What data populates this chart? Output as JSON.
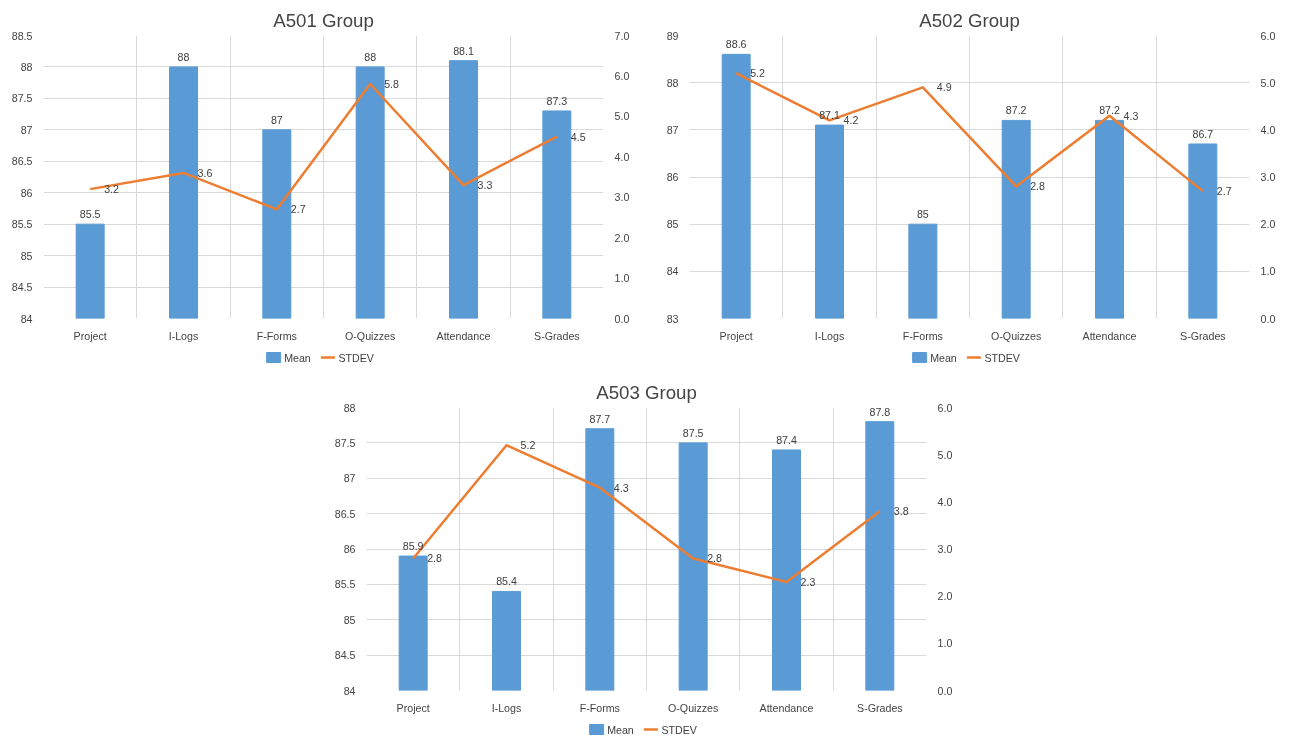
{
  "chart_data": [
    {
      "type": "bar",
      "title": "A501 Group",
      "categories": [
        "Project",
        "I-Logs",
        "F-Forms",
        "O-Quizzes",
        "Attendance",
        "S-Grades"
      ],
      "series": [
        {
          "name": "Mean",
          "color": "#5b9bd5",
          "values": [
            85.5,
            88,
            87,
            88,
            88.1,
            87.3
          ]
        },
        {
          "name": "STDEV",
          "type": "line",
          "axis": "y2",
          "color": "#ed7d31",
          "values": [
            3.2,
            3.6,
            2.7,
            5.8,
            3.3,
            4.5
          ]
        }
      ],
      "ylim": [
        84,
        88.5
      ],
      "yticks": [
        84,
        84.5,
        85,
        85.5,
        86,
        86.5,
        87,
        87.5,
        88,
        88.5
      ],
      "y2lim": [
        0,
        7
      ],
      "y2ticks": [
        {
          "value": 0,
          "label": "0.0"
        },
        {
          "value": 1,
          "label": "1.0"
        },
        {
          "value": 2,
          "label": "2.0"
        },
        {
          "value": 3,
          "label": "3.0"
        },
        {
          "value": 4,
          "label": "4.0"
        },
        {
          "value": 5,
          "label": "5.0"
        },
        {
          "value": 6,
          "label": "6.0"
        },
        {
          "value": 7,
          "label": "7.0"
        }
      ],
      "data_labels": true,
      "grid": true,
      "legend": "bottom",
      "marker": "none"
    },
    {
      "type": "bar",
      "title": "A502 Group",
      "categories": [
        "Project",
        "I-Logs",
        "F-Forms",
        "O-Quizzes",
        "Attendance",
        "S-Grades"
      ],
      "series": [
        {
          "name": "Mean",
          "color": "#5b9bd5",
          "values": [
            88.6,
            87.1,
            85,
            87.2,
            87.2,
            86.7
          ]
        },
        {
          "name": "STDEV",
          "type": "line",
          "axis": "y2",
          "color": "#ed7d31",
          "values": [
            5.2,
            4.2,
            4.9,
            2.8,
            4.3,
            2.7
          ]
        }
      ],
      "ylim": [
        83,
        89
      ],
      "yticks": [
        83,
        84,
        85,
        86,
        87,
        88,
        89
      ],
      "y2lim": [
        0,
        6
      ],
      "y2ticks": [
        {
          "value": 0,
          "label": "0.0"
        },
        {
          "value": 1,
          "label": "1.0"
        },
        {
          "value": 2,
          "label": "2.0"
        },
        {
          "value": 3,
          "label": "3.0"
        },
        {
          "value": 4,
          "label": "4.0"
        },
        {
          "value": 5,
          "label": "5.0"
        },
        {
          "value": 6,
          "label": "6.0"
        }
      ],
      "data_labels": true,
      "grid": true,
      "legend": "bottom",
      "marker": "none"
    },
    {
      "type": "bar",
      "title": "A503 Group",
      "categories": [
        "Project",
        "I-Logs",
        "F-Forms",
        "O-Quizzes",
        "Attendance",
        "S-Grades"
      ],
      "series": [
        {
          "name": "Mean",
          "color": "#5b9bd5",
          "values": [
            85.9,
            85.4,
            87.7,
            87.5,
            87.4,
            87.8
          ]
        },
        {
          "name": "STDEV",
          "type": "line",
          "axis": "y2",
          "color": "#ed7d31",
          "values": [
            2.8,
            5.2,
            4.3,
            2.8,
            2.3,
            3.8
          ]
        }
      ],
      "ylim": [
        84,
        88
      ],
      "yticks": [
        84,
        84.5,
        85,
        85.5,
        86,
        86.5,
        87,
        87.5,
        88
      ],
      "y2lim": [
        0,
        6
      ],
      "y2ticks": [
        {
          "value": 0,
          "label": "0.0"
        },
        {
          "value": 1,
          "label": "1.0"
        },
        {
          "value": 2,
          "label": "2.0"
        },
        {
          "value": 3,
          "label": "3.0"
        },
        {
          "value": 4,
          "label": "4.0"
        },
        {
          "value": 5,
          "label": "5.0"
        },
        {
          "value": 6,
          "label": "6.0"
        }
      ],
      "data_labels": true,
      "grid": true,
      "legend": "bottom",
      "marker": "none"
    }
  ]
}
